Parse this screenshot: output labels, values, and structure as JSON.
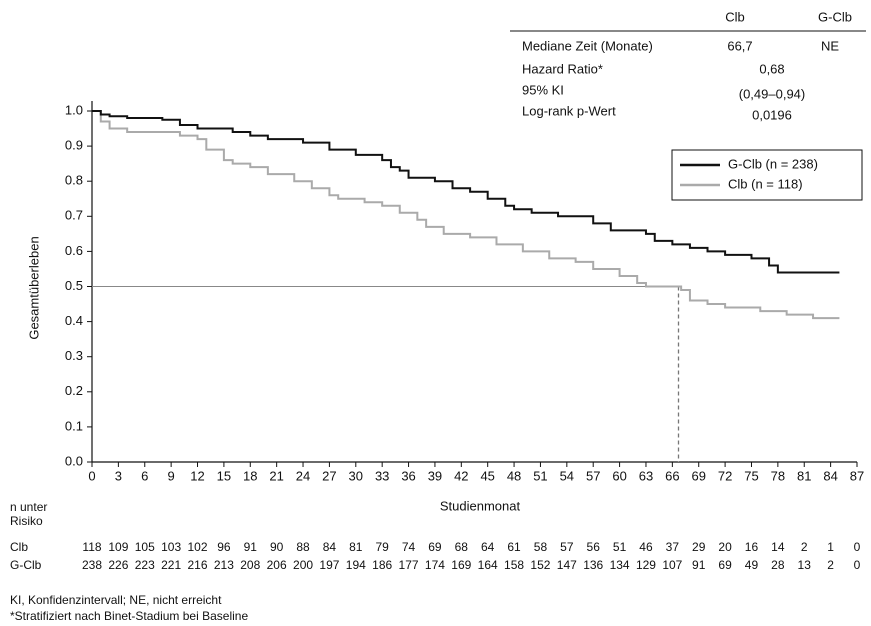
{
  "chart_data": {
    "type": "step",
    "y_label": "Gesamtüberleben",
    "x_label": "Studienmonat",
    "xlim": [
      0,
      87
    ],
    "xticks": [
      0,
      3,
      6,
      9,
      12,
      15,
      18,
      21,
      24,
      27,
      30,
      33,
      36,
      39,
      42,
      45,
      48,
      51,
      54,
      57,
      60,
      63,
      66,
      69,
      72,
      75,
      78,
      81,
      84,
      87
    ],
    "ylim": [
      0,
      1
    ],
    "yticks": [
      {
        "value": 0,
        "label": "0.0"
      },
      0.1,
      0.2,
      0.3,
      0.4,
      0.5,
      0.6,
      0.7,
      0.8,
      0.9,
      {
        "value": 1,
        "label": "1.0"
      }
    ],
    "reference_y": 0.5,
    "median_x": 66.7,
    "series": [
      {
        "name": "G-Clb (n = 238)",
        "color": "#111111",
        "x": [
          0,
          1,
          2,
          4,
          8,
          10,
          12,
          16,
          18,
          20,
          24,
          27,
          30,
          33,
          34,
          35,
          36,
          39,
          41,
          43,
          45,
          47,
          48,
          50,
          53,
          57,
          59,
          63,
          64,
          66,
          68,
          70,
          72,
          75,
          77,
          78,
          85
        ],
        "values": [
          1.0,
          0.99,
          0.985,
          0.98,
          0.975,
          0.96,
          0.95,
          0.94,
          0.93,
          0.92,
          0.91,
          0.89,
          0.875,
          0.86,
          0.84,
          0.83,
          0.81,
          0.8,
          0.78,
          0.77,
          0.75,
          0.73,
          0.72,
          0.71,
          0.7,
          0.68,
          0.66,
          0.65,
          0.63,
          0.62,
          0.61,
          0.6,
          0.59,
          0.58,
          0.56,
          0.54,
          0.54
        ]
      },
      {
        "name": "Clb (n = 118)",
        "color": "#aaaaaa",
        "x": [
          0,
          1,
          2,
          4,
          10,
          12,
          13,
          15,
          16,
          18,
          20,
          23,
          25,
          27,
          28,
          31,
          33,
          35,
          37,
          38,
          40,
          43,
          46,
          49,
          52,
          55,
          57,
          60,
          62,
          63,
          67,
          68,
          70,
          72,
          76,
          79,
          82,
          85
        ],
        "values": [
          1.0,
          0.97,
          0.95,
          0.94,
          0.93,
          0.92,
          0.89,
          0.86,
          0.85,
          0.84,
          0.82,
          0.8,
          0.78,
          0.76,
          0.75,
          0.74,
          0.73,
          0.71,
          0.69,
          0.67,
          0.65,
          0.64,
          0.62,
          0.6,
          0.58,
          0.57,
          0.55,
          0.53,
          0.51,
          0.5,
          0.49,
          0.46,
          0.45,
          0.44,
          0.43,
          0.42,
          0.41,
          0.41
        ]
      }
    ],
    "legend": "right"
  },
  "info_table": {
    "header": [
      "Clb",
      "G-Clb"
    ],
    "rows": [
      [
        "Mediane Zeit (Monate)",
        "66,7",
        "NE"
      ],
      [
        "Hazard Ratio*",
        "0,68"
      ],
      [
        "95% KI",
        "(0,49–0,94)"
      ],
      [
        "Log-rank p-Wert",
        "0,0196"
      ]
    ]
  },
  "risk_table": {
    "label": [
      "n unter",
      "Risiko"
    ],
    "rows": [
      {
        "name": "Clb",
        "values": [
          118,
          109,
          105,
          103,
          102,
          96,
          91,
          90,
          88,
          84,
          81,
          79,
          74,
          69,
          68,
          64,
          61,
          58,
          57,
          56,
          51,
          46,
          37,
          29,
          20,
          16,
          14,
          2,
          1,
          0
        ]
      },
      {
        "name": "G-Clb",
        "values": [
          238,
          226,
          223,
          221,
          216,
          213,
          208,
          206,
          200,
          197,
          194,
          186,
          177,
          174,
          169,
          164,
          158,
          152,
          147,
          136,
          134,
          129,
          107,
          91,
          69,
          49,
          28,
          13,
          2,
          0
        ]
      }
    ]
  },
  "footnotes": [
    "KI, Konfidenzintervall; NE, nicht erreicht",
    "*Stratifiziert nach Binet-Stadium bei Baseline"
  ]
}
